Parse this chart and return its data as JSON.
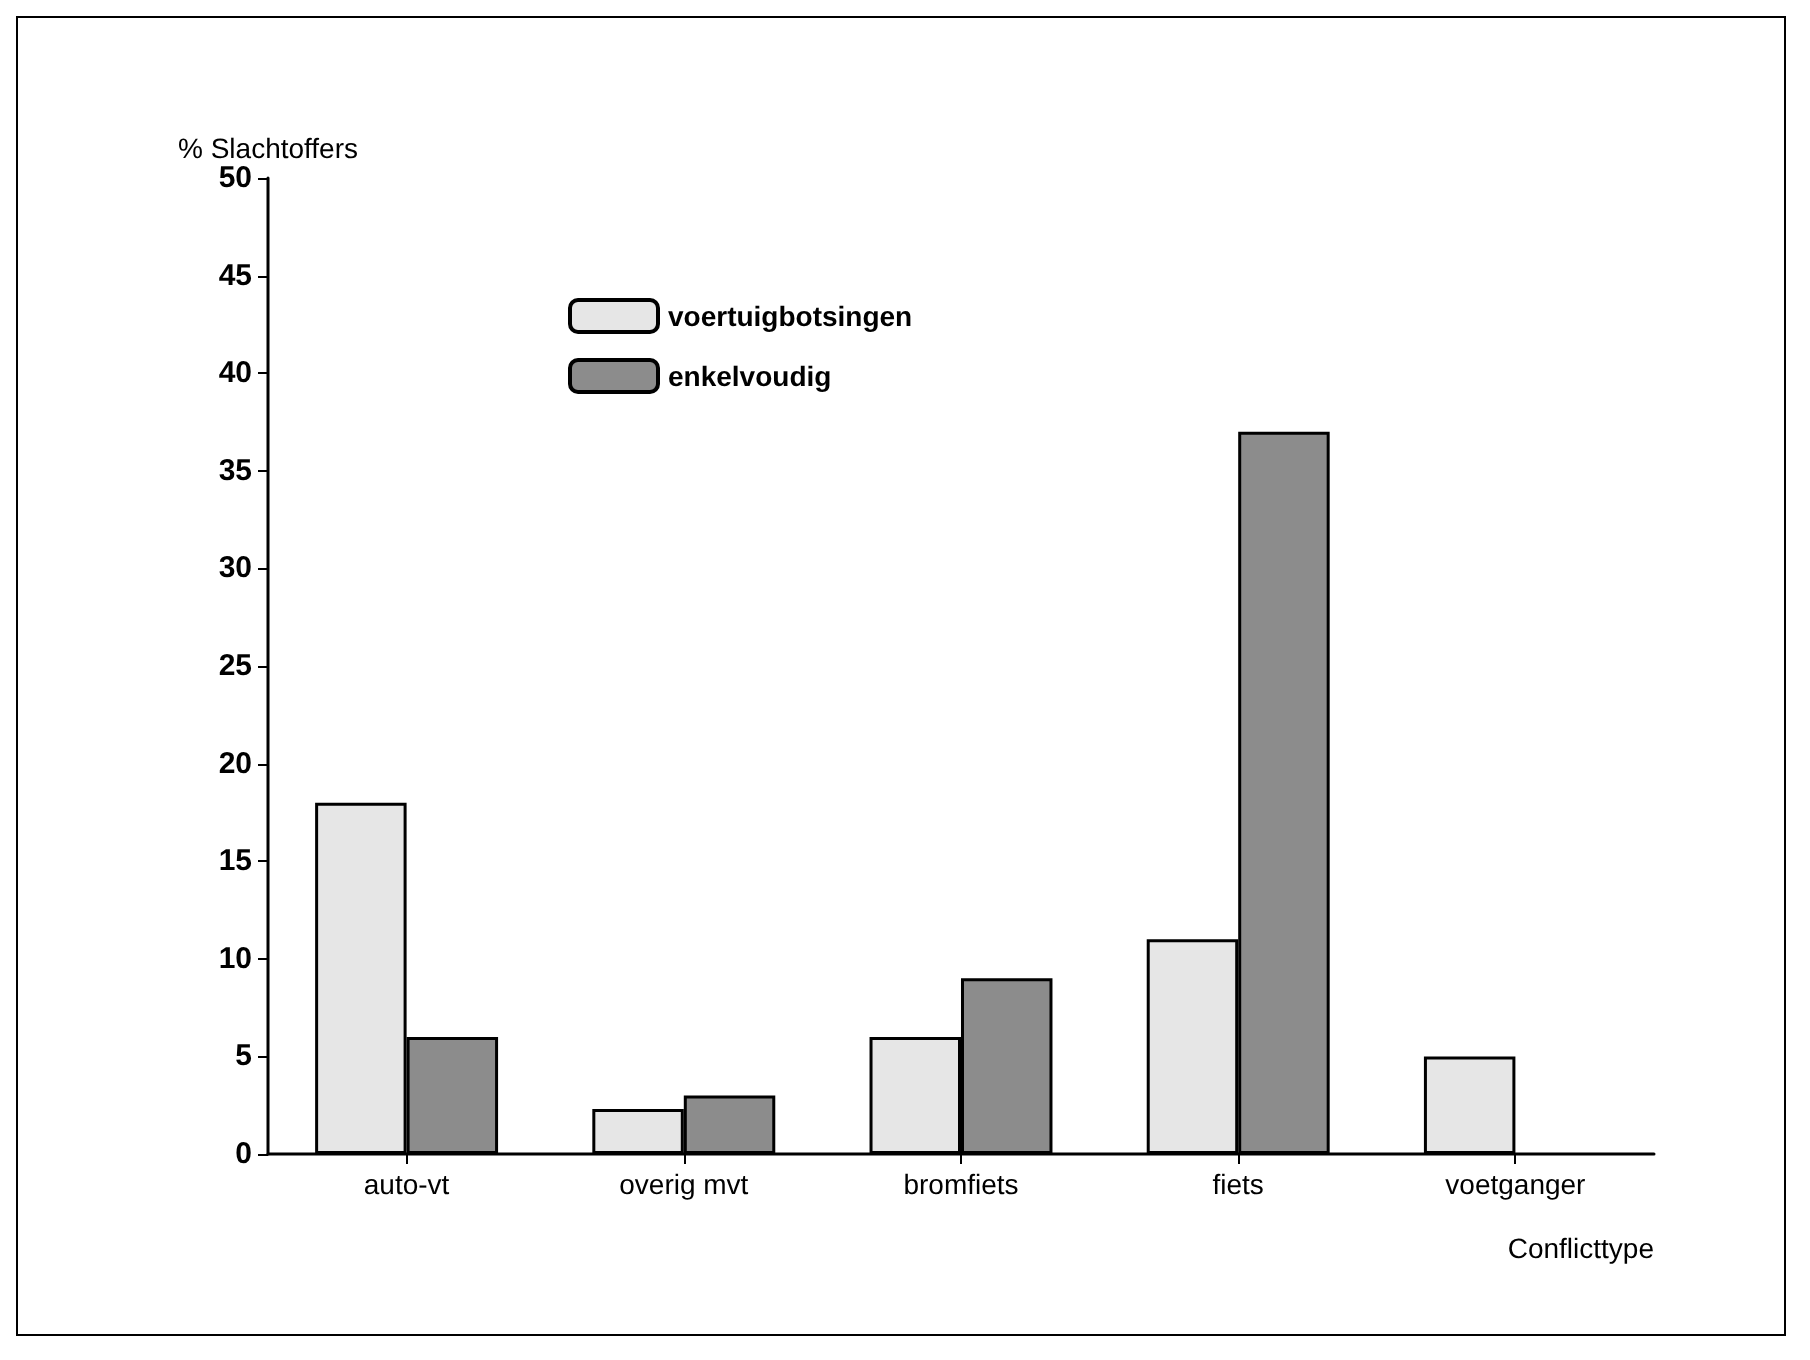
{
  "chart_data": {
    "type": "bar",
    "ylabel": "% Slachtoffers",
    "xlabel": "Conflicttype",
    "categories": [
      "auto-vt",
      "overig mvt",
      "bromfiets",
      "fiets",
      "voetganger"
    ],
    "series": [
      {
        "name": "voertuigbotsingen",
        "color": "#e6e6e6",
        "values": [
          18,
          2.3,
          6,
          11,
          5
        ]
      },
      {
        "name": "enkelvoudig",
        "color": "#8c8c8c",
        "values": [
          6,
          3,
          9,
          37,
          null
        ]
      }
    ],
    "ylim": [
      0,
      50
    ],
    "yticks": [
      0,
      5,
      10,
      15,
      20,
      25,
      30,
      35,
      40,
      45,
      50
    ],
    "grid": false,
    "legend": "top left"
  }
}
